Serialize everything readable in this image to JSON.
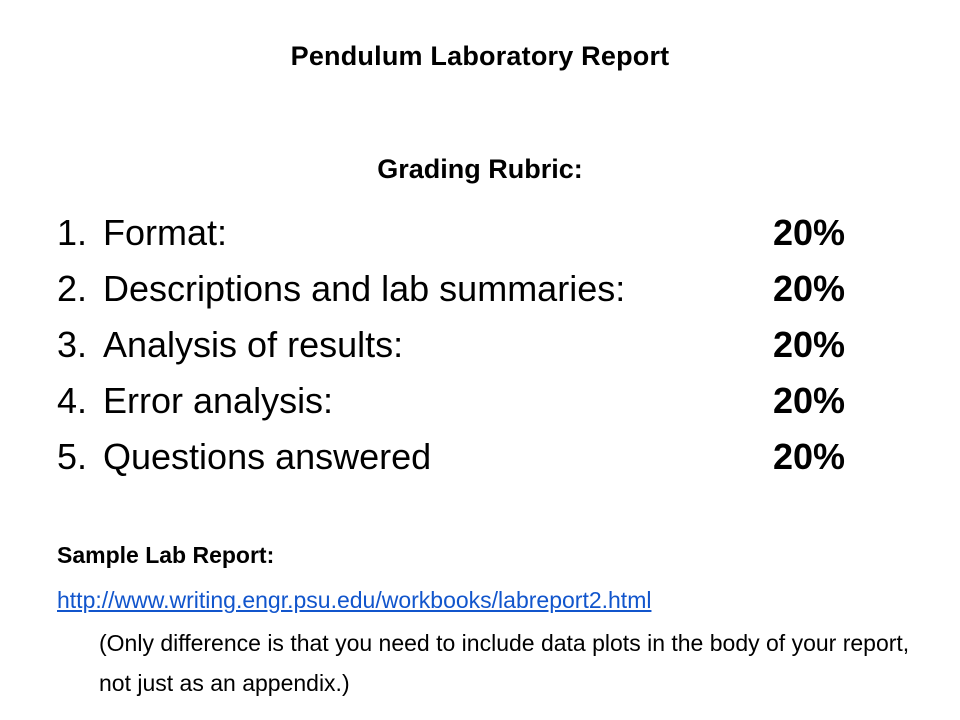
{
  "title": "Pendulum Laboratory Report",
  "subtitle": "Grading Rubric:",
  "rubric": [
    {
      "number": "1.",
      "label": "Format:",
      "weight": "20%"
    },
    {
      "number": "2.",
      "label": "Descriptions and lab summaries:",
      "weight": "20%"
    },
    {
      "number": "3.",
      "label": "Analysis of results:",
      "weight": "20%"
    },
    {
      "number": "4.",
      "label": "Error analysis:",
      "weight": "20%"
    },
    {
      "number": "5.",
      "label": "Questions answered",
      "weight": "20%"
    }
  ],
  "sample": {
    "heading": "Sample Lab Report:",
    "link": "http://www.writing.engr.psu.edu/workbooks/labreport2.html",
    "note": "(Only difference is that you need to include data plots in the body of your report, not just as an appendix.)"
  },
  "colors": {
    "link": "#1155cc",
    "text": "#000000",
    "background": "#ffffff"
  }
}
